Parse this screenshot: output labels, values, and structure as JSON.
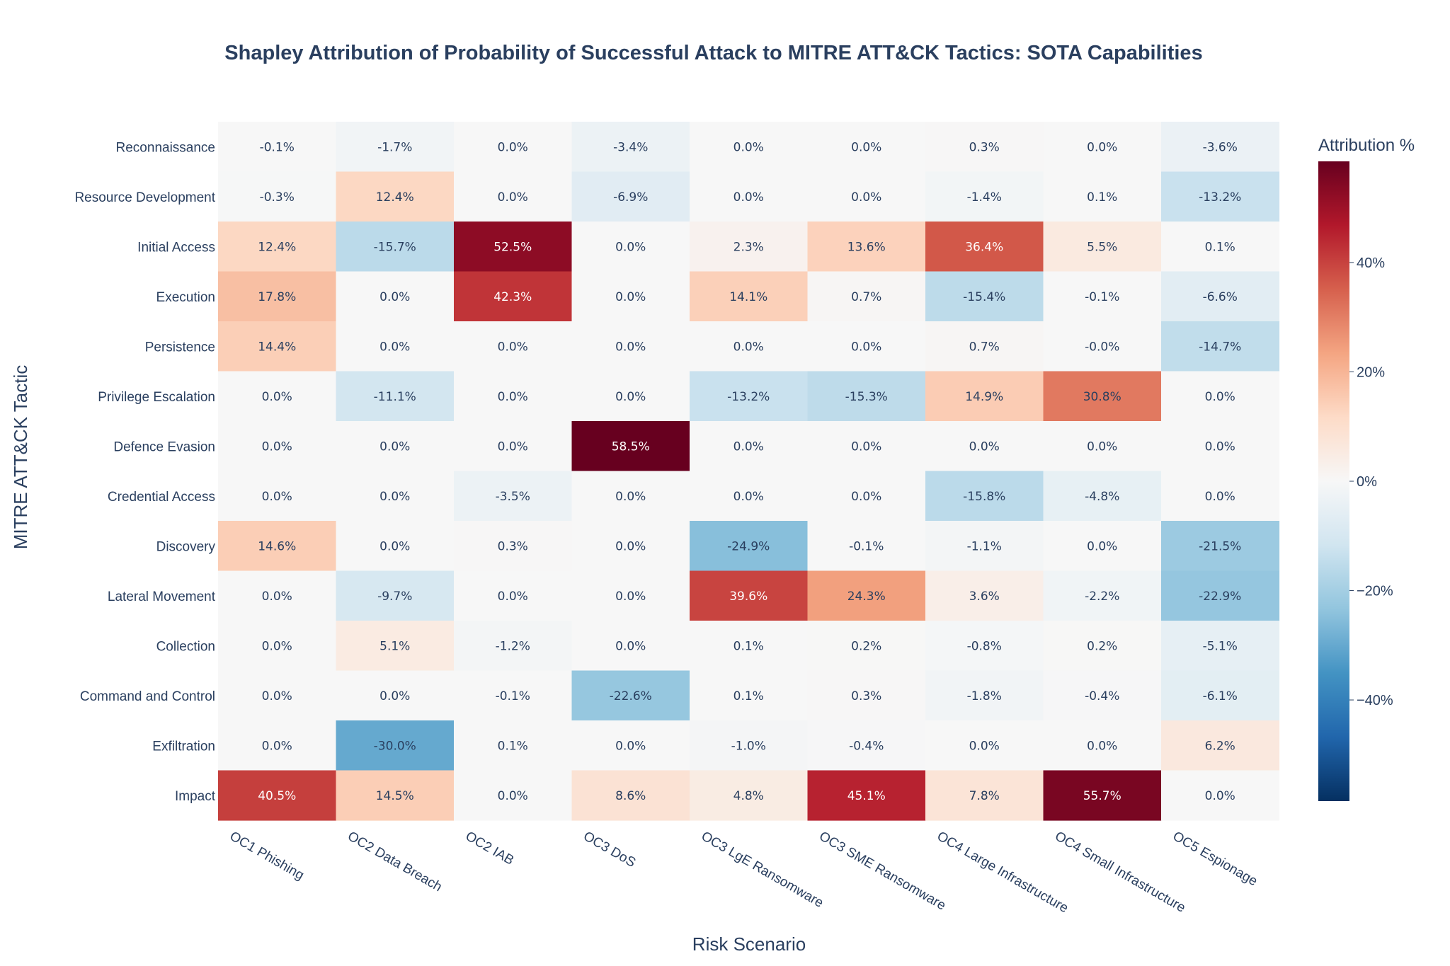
{
  "chart_data": {
    "type": "heatmap",
    "title": "Shapley Attribution of Probability of Successful Attack to MITRE ATT&CK Tactics: SOTA Capabilities",
    "xlabel": "Risk Scenario",
    "ylabel": "MITRE ATT&CK Tactic",
    "colorbar_title": "Attribution %",
    "colorscale": "RdBu (reversed)",
    "zlim": [
      -58.5,
      58.5
    ],
    "colorbar_ticks": [
      "40%",
      "20%",
      "0%",
      "−20%",
      "−40%"
    ],
    "colorbar_tick_values": [
      40,
      20,
      0,
      -20,
      -40
    ],
    "columns": [
      "OC1 Phishing",
      "OC2 Data Breach",
      "OC2 IAB",
      "OC3 DoS",
      "OC3 LgE Ransomware",
      "OC3 SME Ransomware",
      "OC4 Large Infrastructure",
      "OC4 Small Infrastructure",
      "OC5 Espionage"
    ],
    "rows": [
      "Reconnaissance",
      "Resource Development",
      "Initial Access",
      "Execution",
      "Persistence",
      "Privilege Escalation",
      "Defence Evasion",
      "Credential Access",
      "Discovery",
      "Lateral Movement",
      "Collection",
      "Command and Control",
      "Exfiltration",
      "Impact"
    ],
    "values": [
      [
        -0.1,
        -1.7,
        0.0,
        -3.4,
        0.0,
        0.0,
        0.3,
        0.0,
        -3.6
      ],
      [
        -0.3,
        12.4,
        0.0,
        -6.9,
        0.0,
        0.0,
        -1.4,
        0.1,
        -13.2
      ],
      [
        12.4,
        -15.7,
        52.5,
        0.0,
        2.3,
        13.6,
        36.4,
        5.5,
        0.1
      ],
      [
        17.8,
        0.0,
        42.3,
        0.0,
        14.1,
        0.7,
        -15.4,
        -0.1,
        -6.6
      ],
      [
        14.4,
        0.0,
        0.0,
        0.0,
        0.0,
        0.0,
        0.7,
        -0.0,
        -14.7
      ],
      [
        0.0,
        -11.1,
        0.0,
        0.0,
        -13.2,
        -15.3,
        14.9,
        30.8,
        0.0
      ],
      [
        0.0,
        0.0,
        0.0,
        58.5,
        0.0,
        0.0,
        0.0,
        0.0,
        0.0
      ],
      [
        0.0,
        0.0,
        -3.5,
        0.0,
        0.0,
        0.0,
        -15.8,
        -4.8,
        0.0
      ],
      [
        14.6,
        0.0,
        0.3,
        0.0,
        -24.9,
        -0.1,
        -1.1,
        0.0,
        -21.5
      ],
      [
        0.0,
        -9.7,
        0.0,
        0.0,
        39.6,
        24.3,
        3.6,
        -2.2,
        -22.9
      ],
      [
        0.0,
        5.1,
        -1.2,
        0.0,
        0.1,
        0.2,
        -0.8,
        0.2,
        -5.1
      ],
      [
        0.0,
        0.0,
        -0.1,
        -22.6,
        0.1,
        0.3,
        -1.8,
        -0.4,
        -6.1
      ],
      [
        0.0,
        -30.0,
        0.1,
        0.0,
        -1.0,
        -0.4,
        0.0,
        0.0,
        6.2
      ],
      [
        40.5,
        14.5,
        0.0,
        8.6,
        4.8,
        45.1,
        7.8,
        55.7,
        0.0
      ]
    ],
    "labels": [
      [
        "-0.1%",
        "-1.7%",
        "0.0%",
        "-3.4%",
        "0.0%",
        "0.0%",
        "0.3%",
        "0.0%",
        "-3.6%"
      ],
      [
        "-0.3%",
        "12.4%",
        "0.0%",
        "-6.9%",
        "0.0%",
        "0.0%",
        "-1.4%",
        "0.1%",
        "-13.2%"
      ],
      [
        "12.4%",
        "-15.7%",
        "52.5%",
        "0.0%",
        "2.3%",
        "13.6%",
        "36.4%",
        "5.5%",
        "0.1%"
      ],
      [
        "17.8%",
        "0.0%",
        "42.3%",
        "0.0%",
        "14.1%",
        "0.7%",
        "-15.4%",
        "-0.1%",
        "-6.6%"
      ],
      [
        "14.4%",
        "0.0%",
        "0.0%",
        "0.0%",
        "0.0%",
        "0.0%",
        "0.7%",
        "-0.0%",
        "-14.7%"
      ],
      [
        "0.0%",
        "-11.1%",
        "0.0%",
        "0.0%",
        "-13.2%",
        "-15.3%",
        "14.9%",
        "30.8%",
        "0.0%"
      ],
      [
        "0.0%",
        "0.0%",
        "0.0%",
        "58.5%",
        "0.0%",
        "0.0%",
        "0.0%",
        "0.0%",
        "0.0%"
      ],
      [
        "0.0%",
        "0.0%",
        "-3.5%",
        "0.0%",
        "0.0%",
        "0.0%",
        "-15.8%",
        "-4.8%",
        "0.0%"
      ],
      [
        "14.6%",
        "0.0%",
        "0.3%",
        "0.0%",
        "-24.9%",
        "-0.1%",
        "-1.1%",
        "0.0%",
        "-21.5%"
      ],
      [
        "0.0%",
        "-9.7%",
        "0.0%",
        "0.0%",
        "39.6%",
        "24.3%",
        "3.6%",
        "-2.2%",
        "-22.9%"
      ],
      [
        "0.0%",
        "5.1%",
        "-1.2%",
        "0.0%",
        "0.1%",
        "0.2%",
        "-0.8%",
        "0.2%",
        "-5.1%"
      ],
      [
        "0.0%",
        "0.0%",
        "-0.1%",
        "-22.6%",
        "0.1%",
        "0.3%",
        "-1.8%",
        "-0.4%",
        "-6.1%"
      ],
      [
        "0.0%",
        "-30.0%",
        "0.1%",
        "0.0%",
        "-1.0%",
        "-0.4%",
        "0.0%",
        "0.0%",
        "6.2%"
      ],
      [
        "40.5%",
        "14.5%",
        "0.0%",
        "8.6%",
        "4.8%",
        "45.1%",
        "7.8%",
        "55.7%",
        "0.0%"
      ]
    ]
  }
}
